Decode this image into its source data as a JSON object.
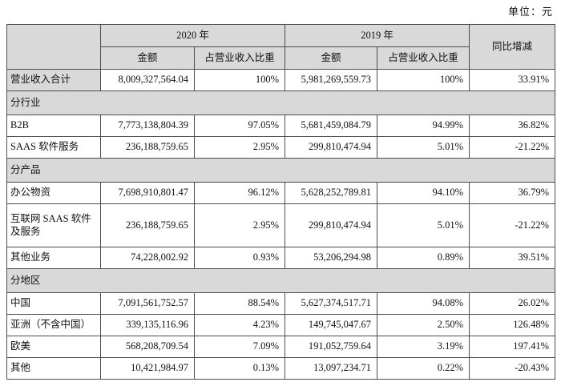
{
  "page": {
    "unit_label": "单位：元"
  },
  "colors": {
    "header_bg": "#d9d9d9",
    "border": "#4d4d4d",
    "text": "#111111",
    "page_bg": "#ffffff"
  },
  "table": {
    "headers": {
      "corner": "",
      "year_2020": "2020 年",
      "year_2019": "2019 年",
      "yoy": "同比增减",
      "amount_2020": "金额",
      "ratio_2020": "占营业收入比重",
      "amount_2019": "金额",
      "ratio_2019": "占营业收入比重"
    },
    "rows": [
      {
        "type": "data",
        "label": "营业收入合计",
        "label_gray": true,
        "tall": false,
        "a2020": "8,009,327,564.04",
        "r2020": "100%",
        "a2019": "5,981,269,559.73",
        "r2019": "100%",
        "yoy": "33.91%"
      },
      {
        "type": "section",
        "label": "分行业"
      },
      {
        "type": "data",
        "label": "B2B",
        "label_gray": false,
        "tall": false,
        "a2020": "7,773,138,804.39",
        "r2020": "97.05%",
        "a2019": "5,681,459,084.79",
        "r2019": "94.99%",
        "yoy": "36.82%"
      },
      {
        "type": "data",
        "label": "SAAS 软件服务",
        "label_gray": false,
        "tall": false,
        "a2020": "236,188,759.65",
        "r2020": "2.95%",
        "a2019": "299,810,474.94",
        "r2019": "5.01%",
        "yoy": "-21.22%"
      },
      {
        "type": "section",
        "label": "分产品"
      },
      {
        "type": "data",
        "label": "办公物资",
        "label_gray": false,
        "tall": false,
        "a2020": "7,698,910,801.47",
        "r2020": "96.12%",
        "a2019": "5,628,252,789.81",
        "r2019": "94.10%",
        "yoy": "36.79%"
      },
      {
        "type": "data",
        "label": "互联网 SAAS 软件及服务",
        "label_gray": false,
        "tall": true,
        "a2020": "236,188,759.65",
        "r2020": "2.95%",
        "a2019": "299,810,474.94",
        "r2019": "5.01%",
        "yoy": "-21.22%"
      },
      {
        "type": "data",
        "label": "其他业务",
        "label_gray": false,
        "tall": false,
        "a2020": "74,228,002.92",
        "r2020": "0.93%",
        "a2019": "53,206,294.98",
        "r2019": "0.89%",
        "yoy": "39.51%"
      },
      {
        "type": "section",
        "label": "分地区"
      },
      {
        "type": "data",
        "label": "中国",
        "label_gray": false,
        "tall": false,
        "a2020": "7,091,561,752.57",
        "r2020": "88.54%",
        "a2019": "5,627,374,517.71",
        "r2019": "94.08%",
        "yoy": "26.02%"
      },
      {
        "type": "data",
        "label": "亚洲（不含中国）",
        "label_gray": false,
        "tall": false,
        "a2020": "339,135,116.96",
        "r2020": "4.23%",
        "a2019": "149,745,047.67",
        "r2019": "2.50%",
        "yoy": "126.48%"
      },
      {
        "type": "data",
        "label": "欧美",
        "label_gray": false,
        "tall": false,
        "a2020": "568,208,709.54",
        "r2020": "7.09%",
        "a2019": "191,052,759.64",
        "r2019": "3.19%",
        "yoy": "197.41%"
      },
      {
        "type": "data",
        "label": "其他",
        "label_gray": false,
        "tall": false,
        "a2020": "10,421,984.97",
        "r2020": "0.13%",
        "a2019": "13,097,234.71",
        "r2019": "0.22%",
        "yoy": "-20.43%"
      }
    ]
  }
}
